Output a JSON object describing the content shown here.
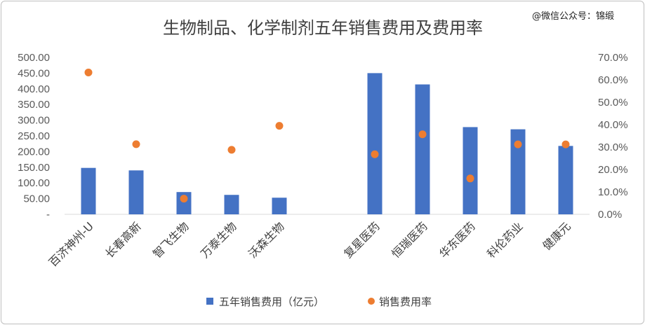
{
  "watermark": "@微信公众号：锦缎",
  "chart_data": {
    "type": "bar",
    "title": "生物制品、化学制剂五年销售费用及费用率",
    "categories": [
      "百济神州-U",
      "长春高新",
      "智飞生物",
      "万泰生物",
      "沃森生物",
      "",
      "复星医药",
      "恒瑞医药",
      "华东医药",
      "科伦药业",
      "健康元"
    ],
    "series": [
      {
        "name": "五年销售费用（亿元）",
        "kind": "bar",
        "axis": "left",
        "color": "#4472C4",
        "values": [
          148,
          140,
          71,
          62,
          53,
          null,
          450,
          414,
          278,
          271,
          218
        ]
      },
      {
        "name": "销售费用率",
        "kind": "scatter",
        "axis": "right",
        "color": "#ED7D31",
        "values": [
          0.633,
          0.313,
          0.07,
          0.288,
          0.395,
          null,
          0.268,
          0.357,
          0.16,
          0.312,
          0.312
        ]
      }
    ],
    "y_left": {
      "min": 0,
      "max": 500,
      "step": 50,
      "ticks": [
        "-",
        "50.00",
        "100.00",
        "150.00",
        "200.00",
        "250.00",
        "300.00",
        "350.00",
        "400.00",
        "450.00",
        "500.00"
      ]
    },
    "y_right": {
      "min": 0,
      "max": 0.7,
      "step": 0.1,
      "ticks": [
        "0.0%",
        "10.0%",
        "20.0%",
        "30.0%",
        "40.0%",
        "50.0%",
        "60.0%",
        "70.0%"
      ]
    },
    "grid": false,
    "legend": "bottom"
  }
}
